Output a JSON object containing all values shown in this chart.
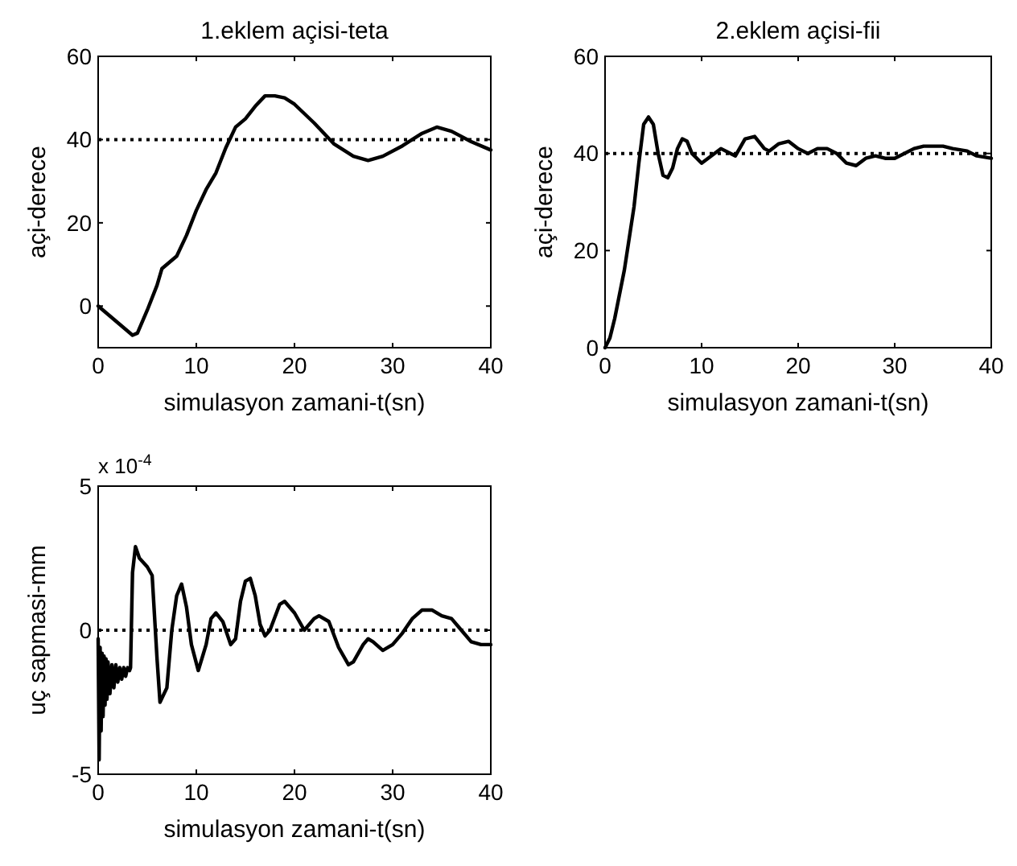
{
  "chart_data": [
    {
      "type": "line",
      "title": "1.eklem açisi-teta",
      "xlabel": "simulasyon zamani-t(sn)",
      "ylabel": "açi-derece",
      "xlim": [
        0,
        40
      ],
      "ylim": [
        -10,
        60
      ],
      "xticks": [
        0,
        10,
        20,
        30,
        40
      ],
      "yticks": [
        0,
        20,
        40,
        60
      ],
      "grid": false,
      "ref_lines": [
        {
          "axis": "y",
          "value": 40,
          "line_style": "dotted",
          "color": "#000000"
        }
      ],
      "series": [
        {
          "color": "#000000",
          "x": [
            0,
            3.5,
            4,
            5,
            6,
            6.5,
            8,
            9,
            10,
            11,
            12,
            13,
            14,
            15,
            16,
            17,
            18,
            19,
            20,
            22,
            24,
            26,
            27.5,
            29,
            31,
            33,
            34.5,
            36,
            38,
            40
          ],
          "values": [
            0,
            -7,
            -6.5,
            -1,
            5,
            9,
            12,
            17,
            23,
            28,
            32,
            38,
            43,
            45,
            48,
            50.5,
            50.5,
            50,
            48.5,
            44,
            39,
            36,
            35,
            36,
            38.5,
            41.5,
            43,
            42,
            39.5,
            37.5
          ]
        }
      ]
    },
    {
      "type": "line",
      "title": "2.eklem açisi-fii",
      "xlabel": "simulasyon zamani-t(sn)",
      "ylabel": "açi-derece",
      "xlim": [
        0,
        40
      ],
      "ylim": [
        0,
        60
      ],
      "xticks": [
        0,
        10,
        20,
        30,
        40
      ],
      "yticks": [
        0,
        20,
        40,
        60
      ],
      "grid": false,
      "ref_lines": [
        {
          "axis": "y",
          "value": 40,
          "line_style": "dotted",
          "color": "#000000"
        }
      ],
      "series": [
        {
          "color": "#000000",
          "x": [
            0,
            0.5,
            1,
            2,
            3,
            3.5,
            4,
            4.5,
            5,
            5.5,
            6,
            6.5,
            7,
            7.5,
            8,
            8.5,
            9,
            10,
            11,
            12,
            13,
            13.5,
            14.5,
            15.5,
            16.5,
            17,
            18,
            19,
            20,
            21,
            22,
            23,
            24,
            25,
            26,
            27,
            28,
            29,
            30,
            31,
            32,
            33,
            35,
            36,
            37.5,
            38.5,
            40
          ],
          "values": [
            0,
            2,
            6,
            16,
            29,
            38,
            46,
            47.5,
            46,
            40,
            35.5,
            35,
            37,
            41,
            43,
            42.5,
            40,
            38,
            39.5,
            41,
            40,
            39.5,
            43,
            43.5,
            41,
            40.5,
            42,
            42.5,
            41,
            40,
            41,
            41,
            40,
            38,
            37.5,
            39,
            39.5,
            39,
            39,
            40,
            41,
            41.5,
            41.5,
            41,
            40.5,
            39.5,
            39
          ]
        }
      ]
    },
    {
      "type": "line",
      "xlabel": "simulasyon zamani-t(sn)",
      "ylabel": "uç sapmasi-mm",
      "annotations": [
        "x 10$^{-4}$"
      ],
      "xlim": [
        0,
        40
      ],
      "ylim": [
        -5,
        5
      ],
      "xticks": [
        0,
        10,
        20,
        30,
        40
      ],
      "yticks": [
        -5,
        0,
        5
      ],
      "grid": false,
      "ref_lines": [
        {
          "axis": "y",
          "value": 0,
          "line_style": "dotted",
          "color": "#000000"
        }
      ],
      "series": [
        {
          "color": "#000000",
          "x": [
            0,
            0.1,
            0.2,
            0.3,
            0.4,
            0.5,
            0.6,
            0.7,
            0.8,
            0.9,
            1,
            1.2,
            1.4,
            1.6,
            1.8,
            2,
            2.2,
            2.4,
            2.6,
            2.8,
            3,
            3.2,
            3.3,
            3.5,
            3.8,
            4.2,
            5,
            5.5,
            6,
            6.3,
            7,
            7.5,
            8,
            8.5,
            9,
            9.5,
            10.2,
            11,
            11.5,
            12,
            12.7,
            13.5,
            14,
            14.5,
            15,
            15.5,
            16,
            16.5,
            17,
            17.5,
            18.5,
            19,
            20,
            21,
            22,
            22.5,
            23.5,
            24.5,
            25.5,
            26,
            27,
            27.5,
            28,
            29,
            30,
            31,
            32,
            33,
            34,
            35,
            36,
            37,
            38,
            39,
            40
          ],
          "values": [
            -0.3,
            -4.5,
            -0.6,
            -3.5,
            -0.8,
            -3,
            -0.9,
            -2.6,
            -1,
            -2.4,
            -1.1,
            -2.2,
            -1.2,
            -2,
            -1.2,
            -1.8,
            -1.3,
            -1.7,
            -1.3,
            -1.6,
            -1.3,
            -1.4,
            -1.3,
            2,
            2.9,
            2.5,
            2.2,
            1.9,
            -1,
            -2.5,
            -2,
            0,
            1.2,
            1.6,
            0.8,
            -0.5,
            -1.4,
            -0.5,
            0.4,
            0.6,
            0.3,
            -0.5,
            -0.3,
            1,
            1.7,
            1.8,
            1.2,
            0.2,
            -0.2,
            0,
            0.9,
            1,
            0.6,
            0,
            0.4,
            0.5,
            0.3,
            -0.6,
            -1.2,
            -1.1,
            -0.5,
            -0.3,
            -0.4,
            -0.7,
            -0.5,
            -0.1,
            0.4,
            0.7,
            0.7,
            0.5,
            0.4,
            0,
            -0.4,
            -0.5,
            -0.5
          ]
        }
      ]
    }
  ]
}
